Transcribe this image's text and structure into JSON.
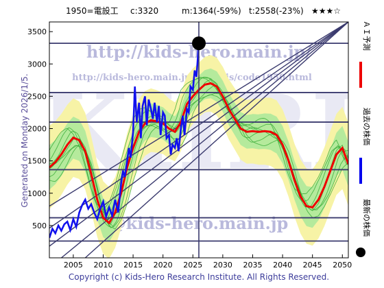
{
  "header": {
    "code_name": "1950=電設工",
    "current": "c:3320",
    "min_stat": "m:1364(-59%)",
    "target_stat": "t:2558(-23%)",
    "rating": "★★★☆"
  },
  "side_label": "Generated on Monday 2026/1/5.",
  "copyright": "Copyright (c) Kids-Hero Research Institute. All Rights Reserved.",
  "watermarks": {
    "url_top": "http://kids-hero.main.jp/",
    "url_analysis": "http://kids-hero.main.jp/analysis/code1950.html",
    "email": "@kids-hero.main.jp",
    "big": "KHRI"
  },
  "legend": [
    {
      "label": "ＡＩ予測",
      "color": "#ee0000",
      "marker": "line"
    },
    {
      "label": "過去の株価",
      "color": "#0000ee",
      "marker": "line"
    },
    {
      "label": "最新の株価",
      "color": "#000000",
      "marker": "dot"
    }
  ],
  "colors": {
    "ai": "#ee0000",
    "past": "#1111ee",
    "latest": "#000000",
    "band_outer": "#f7f3a6",
    "band_inner": "#a9e89a",
    "band_lines": "#33aa33",
    "hlines": "#3a3a6e",
    "diagonals": "#3a3a6e"
  },
  "chart_data": {
    "type": "line",
    "xlim": [
      2001,
      2051
    ],
    "ylim": [
      0,
      3650
    ],
    "x_ticks": [
      2005,
      2010,
      2015,
      2020,
      2025,
      2030,
      2035,
      2040,
      2045,
      2050
    ],
    "y_ticks": [
      500,
      1000,
      1500,
      2000,
      2500,
      3000,
      3500
    ],
    "current": {
      "x": 2026,
      "y": 3320
    },
    "horizontal_lines": [
      3320,
      2558,
      2100,
      1364,
      620,
      260
    ],
    "diagonals": [
      {
        "x": [
          2001,
          2051
        ],
        "y": [
          180,
          3650
        ]
      },
      {
        "x": [
          2001,
          2051
        ],
        "y": [
          460,
          3650
        ]
      },
      {
        "x": [
          2001,
          2051
        ],
        "y": [
          800,
          3650
        ]
      },
      {
        "x": [
          2003,
          2051
        ],
        "y": [
          0,
          3650
        ]
      },
      {
        "x": [
          2007,
          2051
        ],
        "y": [
          0,
          3650
        ]
      }
    ],
    "series": [
      {
        "name": "過去の株価",
        "x": [
          2001,
          2001.5,
          2002,
          2002.5,
          2003,
          2003.5,
          2004,
          2004.5,
          2005,
          2005.5,
          2006,
          2006.5,
          2007,
          2007.5,
          2008,
          2008.5,
          2009,
          2009.5,
          2010,
          2010.5,
          2011,
          2011.5,
          2012,
          2012.5,
          2013,
          2013.3,
          2013.6,
          2014,
          2014.3,
          2014.6,
          2015,
          2015.3,
          2015.6,
          2016,
          2016.3,
          2016.6,
          2017,
          2017.3,
          2017.6,
          2018,
          2018.3,
          2018.6,
          2019,
          2019.3,
          2019.6,
          2020,
          2020.3,
          2020.6,
          2021,
          2021.3,
          2021.6,
          2022,
          2022.3,
          2022.6,
          2023,
          2023.3,
          2023.6,
          2024,
          2024.3,
          2024.6,
          2025,
          2025.3,
          2025.6,
          2026
        ],
        "y": [
          310,
          450,
          380,
          500,
          420,
          520,
          560,
          430,
          600,
          480,
          700,
          820,
          900,
          760,
          830,
          700,
          600,
          760,
          870,
          640,
          780,
          650,
          900,
          700,
          1150,
          1350,
          1250,
          1500,
          1700,
          1550,
          1950,
          2650,
          2100,
          2400,
          1850,
          2350,
          2500,
          2050,
          2450,
          2300,
          2150,
          2400,
          2100,
          2350,
          1900,
          2250,
          2200,
          1850,
          1900,
          1600,
          1750,
          1700,
          1850,
          1650,
          2000,
          2200,
          1900,
          2300,
          2250,
          2650,
          2600,
          2900,
          2800,
          3320
        ]
      },
      {
        "name": "ＡＩ予測",
        "x": [
          2001,
          2002,
          2003,
          2004,
          2005,
          2006,
          2007,
          2008,
          2009,
          2010,
          2011,
          2012,
          2013,
          2014,
          2015,
          2016,
          2017,
          2018,
          2019,
          2020,
          2021,
          2022,
          2023,
          2024,
          2025,
          2026,
          2027,
          2028,
          2029,
          2030,
          2031,
          2032,
          2033,
          2034,
          2035,
          2036,
          2037,
          2038,
          2039,
          2040,
          2041,
          2042,
          2043,
          2044,
          2045,
          2046,
          2047,
          2048,
          2049,
          2050,
          2051
        ],
        "y": [
          1400,
          1480,
          1600,
          1750,
          1860,
          1820,
          1650,
          1300,
          900,
          620,
          540,
          700,
          1000,
          1400,
          1700,
          1950,
          2080,
          2130,
          2110,
          2080,
          2000,
          1950,
          2100,
          2380,
          2500,
          2600,
          2680,
          2700,
          2650,
          2500,
          2300,
          2150,
          2000,
          1950,
          1960,
          1950,
          1960,
          1950,
          1900,
          1750,
          1500,
          1200,
          950,
          800,
          780,
          900,
          1100,
          1350,
          1600,
          1700,
          1450
        ]
      }
    ]
  }
}
